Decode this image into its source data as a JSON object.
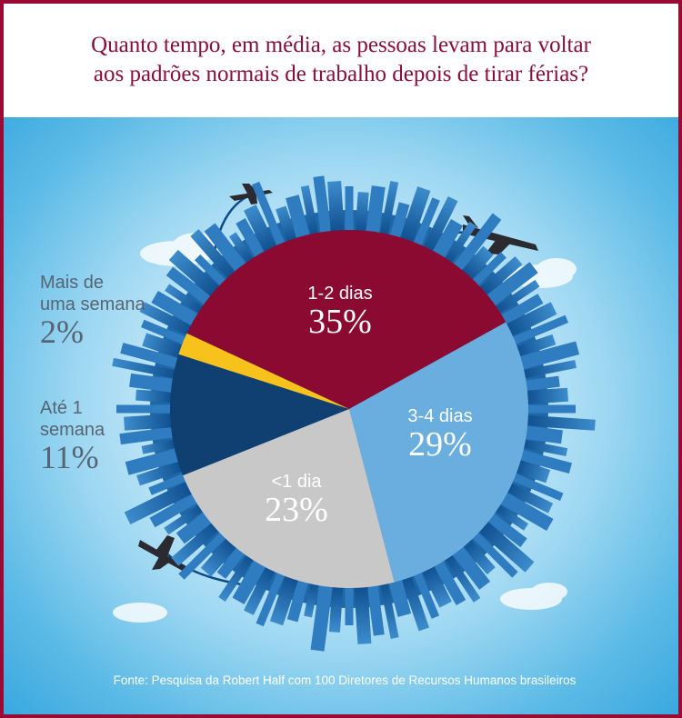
{
  "title_line1": "Quanto tempo, em média, as pessoas levam para voltar",
  "title_line2": "aos padrões normais de trabalho depois de tirar férias?",
  "source": "Fonte: Pesquisa da Robert Half com 100 Diretores de Recursos Humanos brasileiros",
  "chart_data": {
    "type": "pie",
    "slices": [
      {
        "label": "1-2 dias",
        "value": 35,
        "value_text": "35%",
        "color": "#8b0a32"
      },
      {
        "label": "3-4 dias",
        "value": 29,
        "value_text": "29%",
        "color": "#6aaee0"
      },
      {
        "label": "<1 dia",
        "value": 23,
        "value_text": "23%",
        "color": "#c8c8c8"
      },
      {
        "label": "Até 1 semana",
        "value": 11,
        "value_text": "11%",
        "color": "#103f72"
      },
      {
        "label": "Mais de uma semana",
        "value": 2,
        "value_text": "2%",
        "color": "#f8c21d"
      }
    ]
  },
  "outside_labels": {
    "mais_line1": "Mais de",
    "mais_line2": "uma semana",
    "ate_line1": "Até 1",
    "ate_line2": "semana"
  },
  "icons": [
    "airplane-icon",
    "cloud-icon",
    "city-skyline"
  ]
}
